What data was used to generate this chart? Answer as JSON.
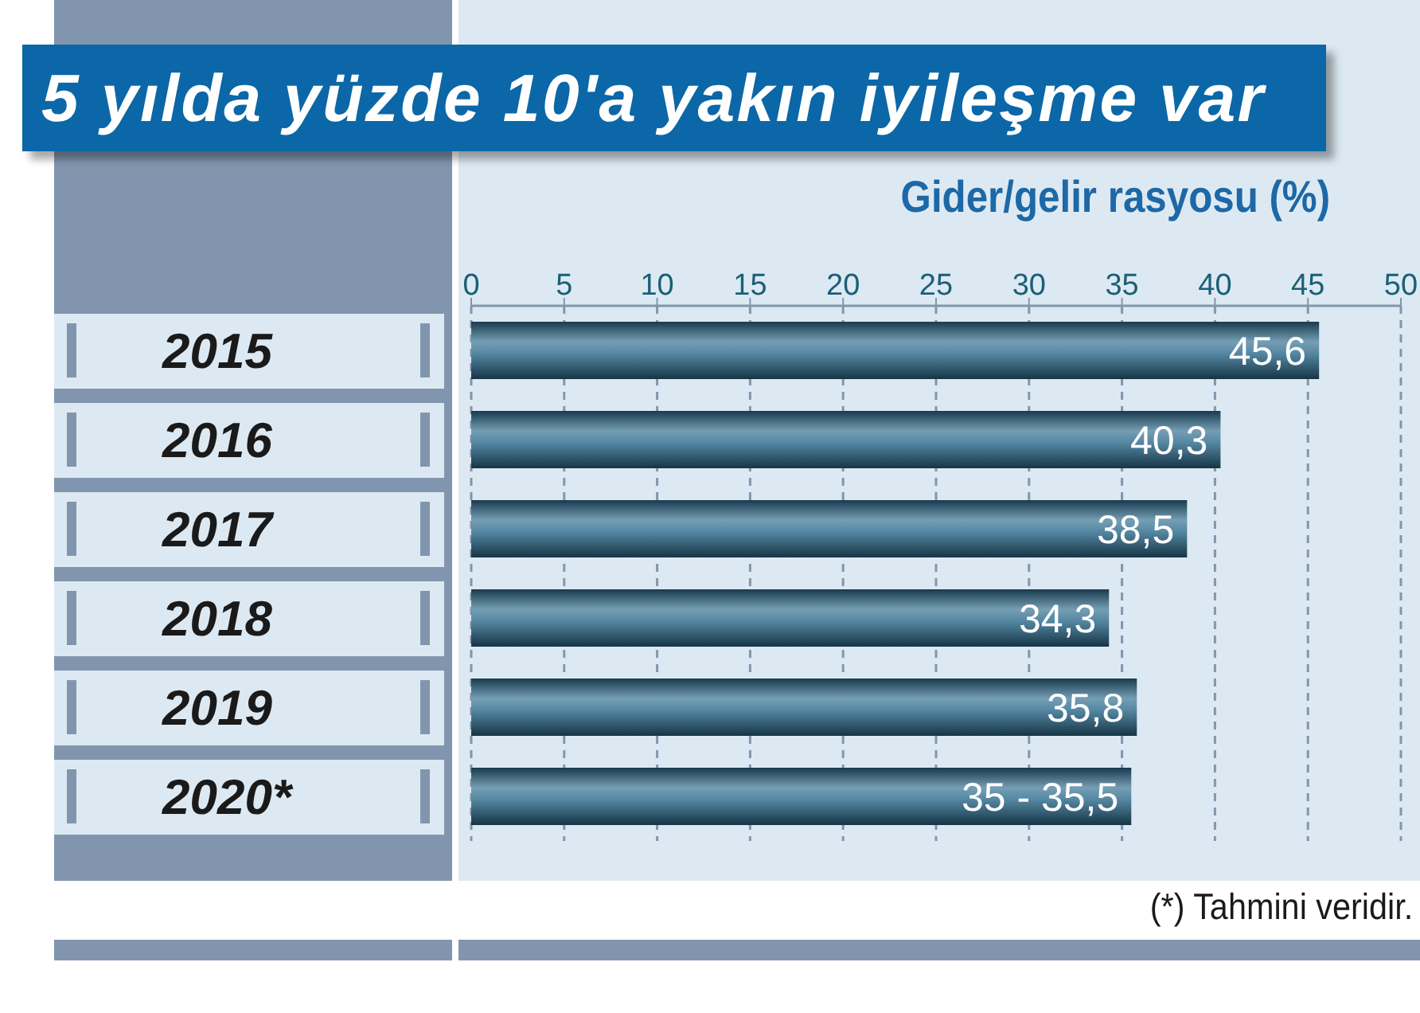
{
  "chart_data": {
    "type": "bar",
    "orientation": "horizontal",
    "title": "5 yılda yüzde 10'a yakın iyileşme var",
    "xlabel": "Gider/gelir rasyosu (%)",
    "categories": [
      "2015",
      "2016",
      "2017",
      "2018",
      "2019",
      "2020*"
    ],
    "values": [
      45.6,
      40.3,
      38.5,
      34.3,
      35.8,
      35.5
    ],
    "value_labels": [
      "45,6",
      "40,3",
      "38,5",
      "34,3",
      "35,8",
      "35 - 35,5"
    ],
    "color": "#2b6a8c",
    "xlim": [
      0,
      50
    ],
    "xticks": [
      0,
      5,
      10,
      15,
      20,
      25,
      30,
      35,
      40,
      45,
      50
    ],
    "grid": "x",
    "annotations": [
      "(*) Tahmini veridir."
    ]
  }
}
